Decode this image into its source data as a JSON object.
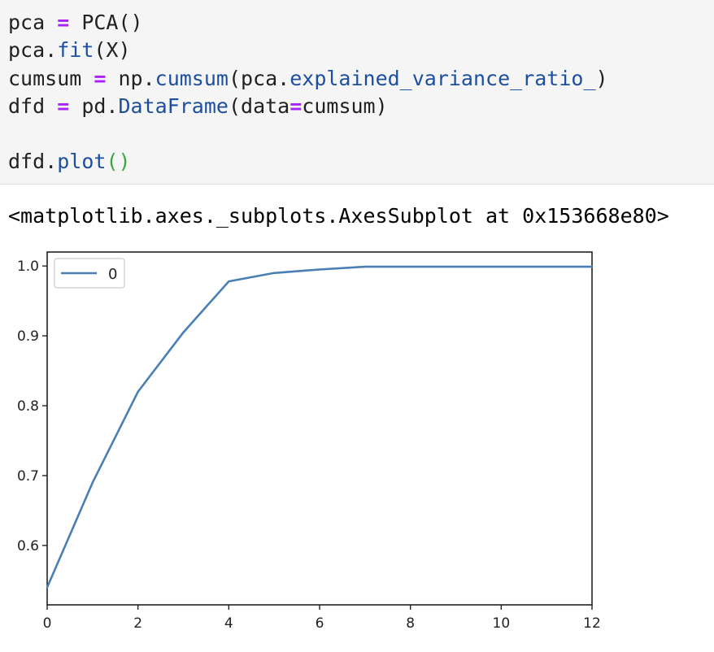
{
  "code_cell": {
    "lines": [
      [
        {
          "t": "pca ",
          "c": "plain"
        },
        {
          "t": "=",
          "c": "op"
        },
        {
          "t": " PCA()",
          "c": "plain"
        }
      ],
      [
        {
          "t": "pca.",
          "c": "plain"
        },
        {
          "t": "fit",
          "c": "fn"
        },
        {
          "t": "(X)",
          "c": "plain"
        }
      ],
      [
        {
          "t": "cumsum ",
          "c": "plain"
        },
        {
          "t": "=",
          "c": "op"
        },
        {
          "t": " np.",
          "c": "plain"
        },
        {
          "t": "cumsum",
          "c": "fn"
        },
        {
          "t": "(pca.",
          "c": "plain"
        },
        {
          "t": "explained_variance_ratio_",
          "c": "fn"
        },
        {
          "t": ")",
          "c": "plain"
        }
      ],
      [
        {
          "t": "dfd ",
          "c": "plain"
        },
        {
          "t": "=",
          "c": "op"
        },
        {
          "t": " pd.",
          "c": "plain"
        },
        {
          "t": "DataFrame",
          "c": "fn"
        },
        {
          "t": "(data",
          "c": "plain"
        },
        {
          "t": "=",
          "c": "op"
        },
        {
          "t": "cumsum)",
          "c": "plain"
        }
      ],
      [],
      [
        {
          "t": "dfd.",
          "c": "plain"
        },
        {
          "t": "plot",
          "c": "fn"
        },
        {
          "t": "()",
          "c": "green"
        }
      ]
    ]
  },
  "output": {
    "repr_text": "<matplotlib.axes._subplots.AxesSubplot at 0x153668e80>"
  },
  "colors": {
    "line": "#4a7fb5",
    "axes": "#222222"
  },
  "chart_data": {
    "type": "line",
    "x": [
      0,
      1,
      2,
      3,
      4,
      5,
      6,
      7,
      8,
      9,
      10,
      11,
      12
    ],
    "series": [
      {
        "name": "0",
        "values": [
          0.54,
          0.69,
          0.82,
          0.905,
          0.978,
          0.99,
          0.995,
          0.999,
          0.999,
          0.999,
          0.999,
          0.999,
          0.999
        ]
      }
    ],
    "title": "",
    "xlabel": "",
    "ylabel": "",
    "xlim": [
      0,
      12
    ],
    "ylim": [
      0.515,
      1.02
    ],
    "xticks": [
      0,
      2,
      4,
      6,
      8,
      10,
      12
    ],
    "yticks": [
      0.6,
      0.7,
      0.8,
      0.9,
      1.0
    ],
    "ytick_labels": [
      "0.6",
      "0.7",
      "0.8",
      "0.9",
      "1.0"
    ],
    "grid": false,
    "legend_position": "upper-left"
  }
}
